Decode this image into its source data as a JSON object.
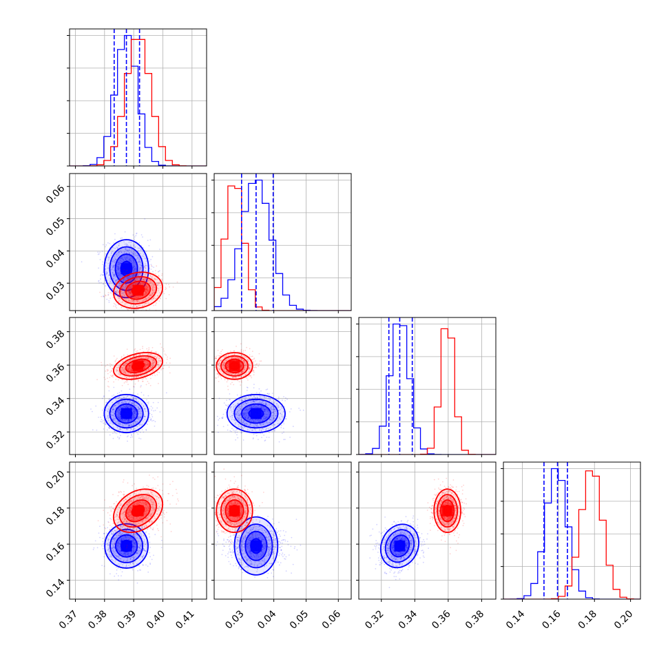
{
  "chart_data": {
    "type": "scatter",
    "subtype": "corner-plot",
    "title": "",
    "grid": true,
    "legend": "none",
    "colors": {
      "series_a": "#0000ff",
      "series_b": "#ff0000",
      "quantile_lines": "#0000ff"
    },
    "parameters": [
      {
        "range": [
          0.368,
          0.415
        ],
        "ticks": [
          0.37,
          0.38,
          0.39,
          0.4,
          0.41
        ],
        "tick_labels": [
          "0.37",
          "0.38",
          "0.39",
          "0.40",
          "0.41"
        ]
      },
      {
        "range": [
          0.0215,
          0.064
        ],
        "ticks": [
          0.03,
          0.04,
          0.05,
          0.06
        ],
        "tick_labels": [
          "0.03",
          "0.04",
          "0.05",
          "0.06"
        ]
      },
      {
        "range": [
          0.3065,
          0.3885
        ],
        "ticks": [
          0.32,
          0.34,
          0.36,
          0.38
        ],
        "tick_labels": [
          "0.32",
          "0.34",
          "0.36",
          "0.38"
        ]
      },
      {
        "range": [
          0.1295,
          0.2055
        ],
        "ticks": [
          0.14,
          0.16,
          0.18,
          0.2
        ],
        "tick_labels": [
          "0.14",
          "0.16",
          "0.18",
          "0.20"
        ]
      }
    ],
    "series": [
      {
        "color": "#0000ff",
        "mean": [
          0.3875,
          0.0345,
          0.331,
          0.159
        ],
        "std": [
          0.0038,
          0.0045,
          0.0057,
          0.006
        ],
        "corr": [
          [
            1,
            0,
            0,
            0
          ],
          [
            0,
            1,
            0,
            0
          ],
          [
            0,
            0,
            1,
            0.15
          ],
          [
            0,
            0,
            0.15,
            1
          ]
        ],
        "quantile_lines": [
          [
            0.3833,
            0.3875,
            0.392
          ],
          [
            0.03,
            0.0345,
            0.0398
          ],
          [
            0.3245,
            0.331,
            0.3385
          ],
          [
            0.152,
            0.1595,
            0.165
          ]
        ]
      },
      {
        "color": "#ff0000",
        "mean": [
          0.3915,
          0.0278,
          0.3595,
          0.1785
        ],
        "std": [
          0.0042,
          0.0028,
          0.004,
          0.006
        ],
        "corr": [
          [
            1,
            0.15,
            0.35,
            0.3
          ],
          [
            0.15,
            1,
            0,
            0
          ],
          [
            0.35,
            0,
            1,
            0
          ],
          [
            0.3,
            0,
            0,
            1
          ]
        ]
      }
    ]
  }
}
